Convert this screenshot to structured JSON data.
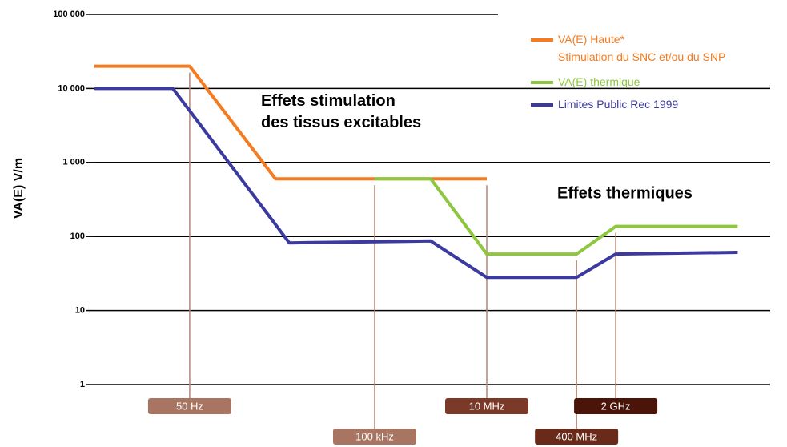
{
  "chart_data": {
    "type": "line",
    "ylabel": "VA(E) V/m",
    "log_x": true,
    "log_y": true,
    "xlim": [
      1,
      1000000000000
    ],
    "ylim": [
      1,
      100000
    ],
    "yticks": [
      {
        "value": 100000,
        "label": "100 000"
      },
      {
        "value": 10000,
        "label": "10 000"
      },
      {
        "value": 1000,
        "label": "1 000"
      },
      100,
      10,
      1
    ],
    "xticks": [
      {
        "value": 50,
        "label": "50 Hz"
      },
      {
        "value": 100000,
        "label": "100 kHz"
      },
      {
        "value": 10000000,
        "label": "10 MHz"
      },
      {
        "value": 400000000,
        "label": "400 MHz"
      },
      {
        "value": 2000000000,
        "label": "2 GHz"
      }
    ],
    "xtick_colors": [
      "#a97563",
      "#a97563",
      "#7b3a28",
      "#6a2a1a",
      "#4a1408"
    ],
    "grid": true,
    "series": [
      {
        "name": "VA(E) Haute*\nStimulation du SNC et/ou du SNP",
        "color": "#f47b20",
        "x": [
          1,
          50,
          1700,
          10000000
        ],
        "values": [
          20000,
          20000,
          600,
          600
        ]
      },
      {
        "name": "VA(E) thermique",
        "color": "#8dc63f",
        "x": [
          100000,
          1000000,
          10000000,
          400000000,
          2000000000,
          300000000000
        ],
        "values": [
          600,
          600,
          58,
          58,
          137,
          137
        ]
      },
      {
        "name": "Limites Public Rec 1999",
        "color": "#3b3a9e",
        "x": [
          1,
          25,
          3000,
          1000000,
          10000000,
          400000000,
          2000000000,
          300000000000
        ],
        "values": [
          10000,
          10000,
          82,
          87,
          28,
          28,
          58,
          61
        ]
      }
    ],
    "annotations": [
      "Effets stimulation\ndes tissus excitables",
      "Effets thermiques"
    ]
  }
}
